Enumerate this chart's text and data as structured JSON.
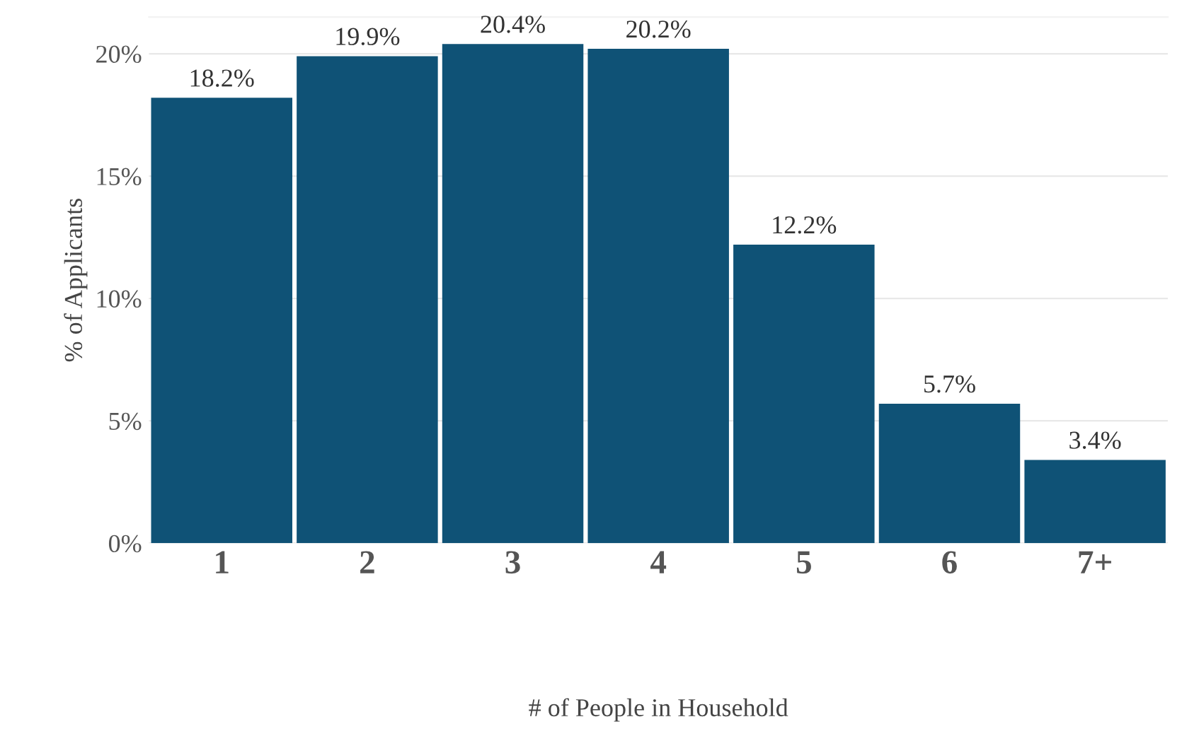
{
  "chart_data": {
    "type": "bar",
    "xlabel": "# of People in Household",
    "ylabel": "% of Applicants",
    "categories": [
      "1",
      "2",
      "3",
      "4",
      "5",
      "6",
      "7+"
    ],
    "values": [
      18.2,
      19.9,
      20.4,
      20.2,
      12.2,
      5.7,
      3.4
    ],
    "value_labels": [
      "18.2%",
      "19.9%",
      "20.4%",
      "20.2%",
      "12.2%",
      "5.7%",
      "3.4%"
    ],
    "color": "#0f5276",
    "ylim": [
      0,
      21.5
    ],
    "yticks": [
      {
        "value": 0,
        "label": "0%"
      },
      {
        "value": 5,
        "label": "5%"
      },
      {
        "value": 10,
        "label": "10%"
      },
      {
        "value": 15,
        "label": "15%"
      },
      {
        "value": 20,
        "label": "20%"
      }
    ],
    "grid": "y"
  }
}
